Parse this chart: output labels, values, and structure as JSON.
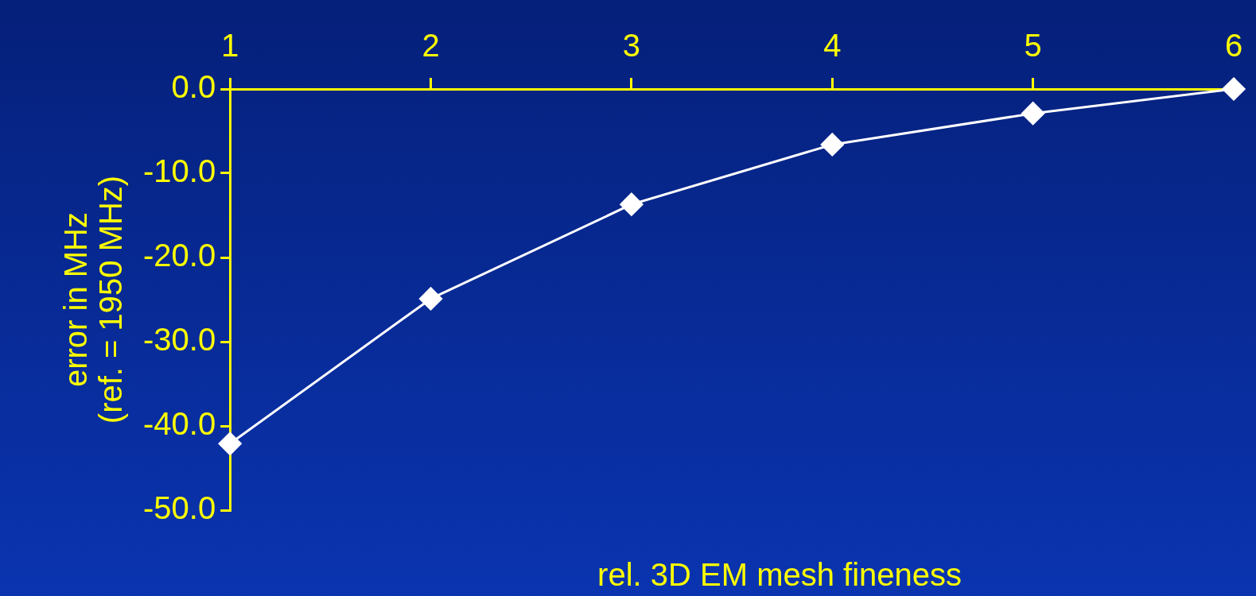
{
  "chart_data": {
    "type": "line",
    "xlabel": "rel. 3D EM mesh fineness",
    "ylabel": "error in MHz\n(ref. = 1950 MHz)",
    "x": [
      1,
      2,
      3,
      4,
      5,
      6
    ],
    "series": [
      {
        "color": "#ffffff",
        "values": [
          -42.1,
          -24.9,
          -13.7,
          -6.6,
          -2.9,
          0
        ]
      }
    ],
    "xlim": [
      1,
      6
    ],
    "xticks": [
      1,
      2,
      3,
      4,
      5,
      6
    ],
    "ylim": [
      -50,
      0
    ],
    "yticks": [
      {
        "value": -50,
        "label": "-50.0"
      },
      {
        "value": -40,
        "label": "-40.0"
      },
      {
        "value": -30,
        "label": "-30.0"
      },
      {
        "value": -20,
        "label": "-20.0"
      },
      {
        "value": -10,
        "label": "-10.0"
      },
      {
        "value": 0,
        "label": "0.0"
      }
    ],
    "grid": false,
    "legend": false,
    "marker": "diamond",
    "line_style": "solid"
  }
}
